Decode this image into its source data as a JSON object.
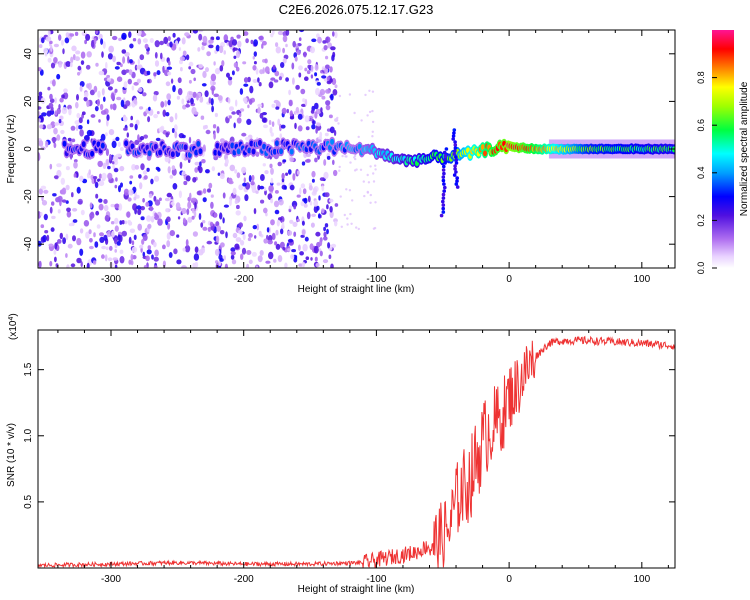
{
  "figure_title": "C2E6.2026.075.12.17.G23",
  "chart_data": [
    {
      "type": "heatmap",
      "title": "",
      "xlabel": "Height of straight line (km)",
      "ylabel": "Frequency (Hz)",
      "xlim": [
        -355,
        125
      ],
      "ylim": [
        -50,
        50
      ],
      "xticks": [
        -300,
        -200,
        -100,
        0,
        100
      ],
      "yticks": [
        -40,
        -20,
        0,
        20,
        40
      ],
      "xtick_labels": [
        "-300",
        "-200",
        "-100",
        "0",
        "100"
      ],
      "ytick_labels": [
        "-40",
        "-20",
        "0",
        "20",
        "40"
      ],
      "colorbar": {
        "label": "Normalized spectral amplitude",
        "range": [
          0,
          1
        ],
        "ticks": [
          "0.0",
          "0.2",
          "0.4",
          "0.6",
          "0.8"
        ],
        "tick_values": [
          0.0,
          0.2,
          0.4,
          0.6,
          0.8
        ],
        "colors": [
          "#ffffff",
          "#e0c0ff",
          "#8a2be2",
          "#0000ff",
          "#00ffff",
          "#00ff00",
          "#ffff00",
          "#ff0000",
          "#ff00aa"
        ]
      },
      "noise_region_x": [
        -355,
        -130
      ],
      "signal_track": [
        {
          "x": -320,
          "y": 0,
          "amp": 0.3
        },
        {
          "x": -250,
          "y": 0,
          "amp": 0.3
        },
        {
          "x": -200,
          "y": 0,
          "amp": 0.3
        },
        {
          "x": -130,
          "y": 1,
          "amp": 0.35
        },
        {
          "x": -100,
          "y": -1,
          "amp": 0.45
        },
        {
          "x": -80,
          "y": -5,
          "amp": 0.5
        },
        {
          "x": -60,
          "y": -4,
          "amp": 0.55
        },
        {
          "x": -45,
          "y": -3,
          "amp": 0.6
        },
        {
          "x": -30,
          "y": -2,
          "amp": 0.75
        },
        {
          "x": -15,
          "y": 0,
          "amp": 0.85
        },
        {
          "x": 0,
          "y": 1,
          "amp": 0.95
        },
        {
          "x": 20,
          "y": 0,
          "amp": 0.85
        },
        {
          "x": 60,
          "y": 0,
          "amp": 0.6
        },
        {
          "x": 125,
          "y": 0,
          "amp": 0.55
        }
      ]
    },
    {
      "type": "line",
      "title": "",
      "xlabel": "Height of straight line (km)",
      "ylabel": "SNR (10 * v/v)",
      "exponent_label": "(x10",
      "exponent_power": "4",
      "exponent_close": ")",
      "xlim": [
        -355,
        125
      ],
      "ylim": [
        0,
        1.8
      ],
      "xticks": [
        -300,
        -200,
        -100,
        0,
        100
      ],
      "yticks": [
        0.5,
        1.0,
        1.5
      ],
      "xtick_labels": [
        "-300",
        "-200",
        "-100",
        "0",
        "100"
      ],
      "ytick_labels": [
        "0.5",
        "1.0",
        "1.5"
      ],
      "line_color": "#ee3333",
      "series": [
        {
          "name": "SNR",
          "x": [
            -355,
            -300,
            -250,
            -200,
            -150,
            -110,
            -90,
            -70,
            -55,
            -45,
            -40,
            -35,
            -30,
            -25,
            -20,
            -15,
            -10,
            -5,
            0,
            5,
            10,
            20,
            30,
            40,
            60,
            80,
            100,
            125
          ],
          "y": [
            0.02,
            0.03,
            0.04,
            0.03,
            0.03,
            0.04,
            0.08,
            0.12,
            0.2,
            0.3,
            0.5,
            0.6,
            0.65,
            0.8,
            0.95,
            1.05,
            1.1,
            1.15,
            1.3,
            1.35,
            1.45,
            1.6,
            1.7,
            1.72,
            1.72,
            1.71,
            1.7,
            1.68
          ]
        }
      ]
    }
  ]
}
